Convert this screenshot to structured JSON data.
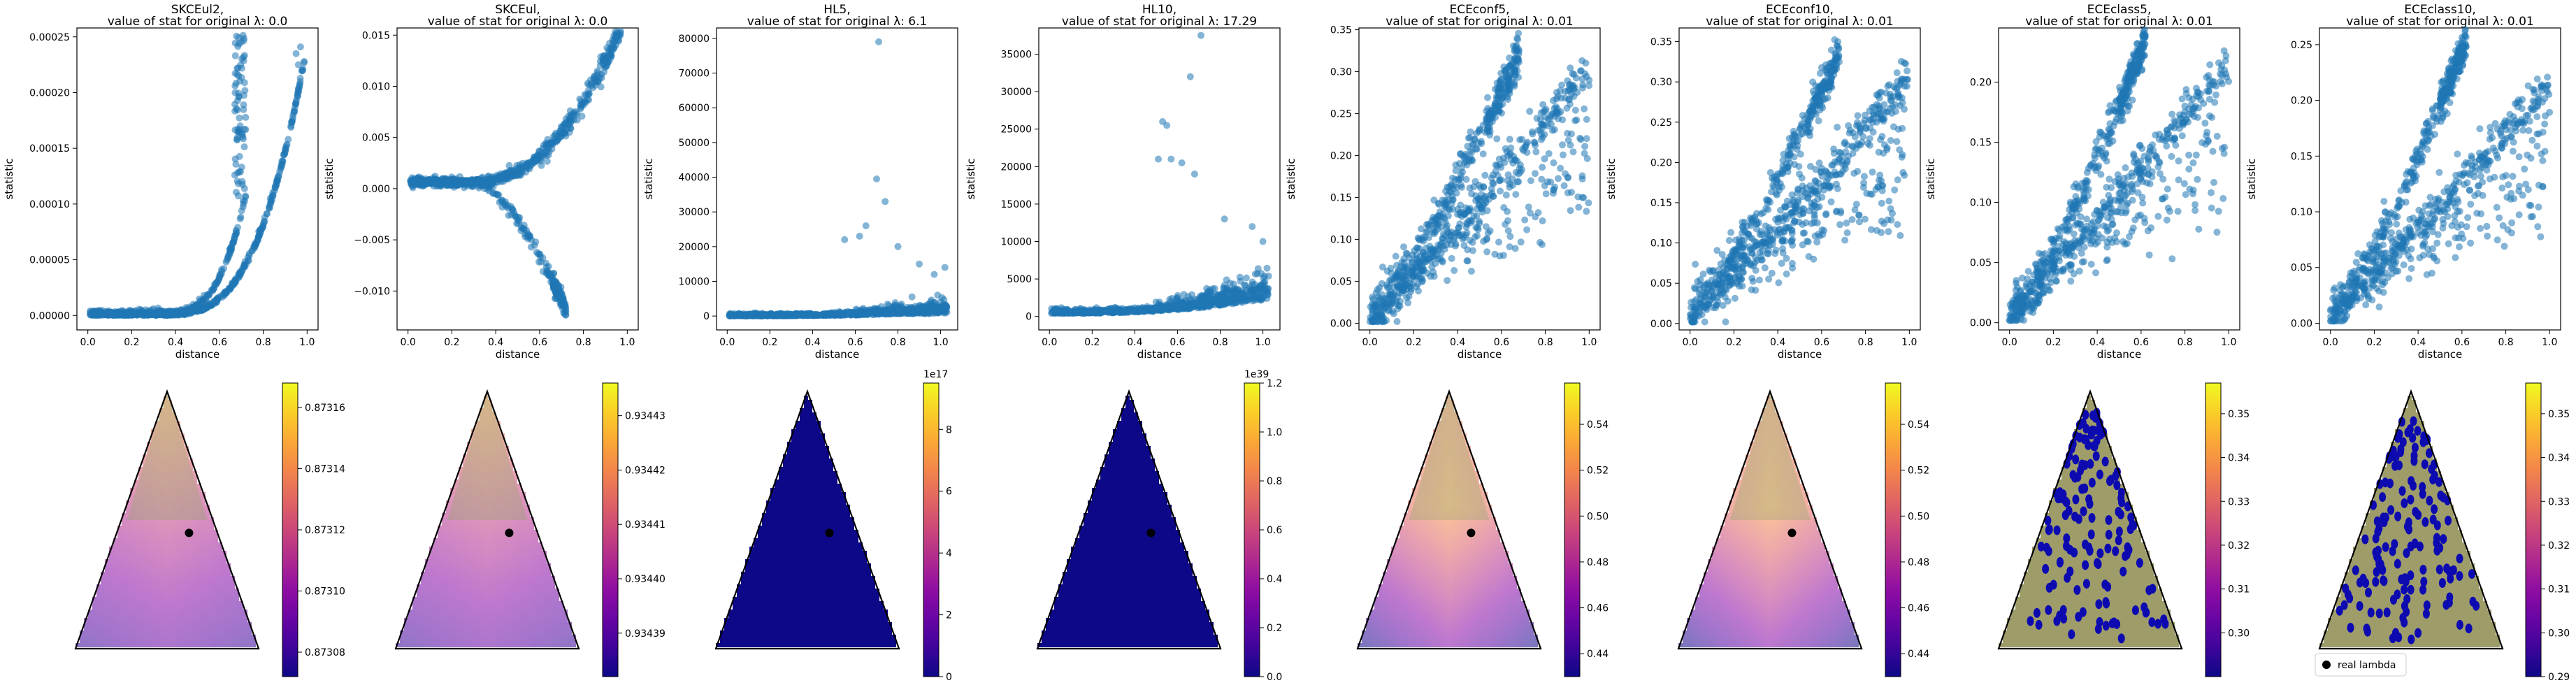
{
  "figure": {
    "background": "#ffffff",
    "point_color": "#1f77b4",
    "real_lambda_legend": "real lambda"
  },
  "chart_data": [
    {
      "type": "scatter",
      "title": "SKCEul2,",
      "subtitle": "value of stat for original λ: 0.0",
      "xlabel": "distance",
      "ylabel": "statistic",
      "xlim": [
        -0.05,
        1.05
      ],
      "ylim": [
        -1.3e-05,
        0.000258
      ],
      "xticks": [
        0.0,
        0.2,
        0.4,
        0.6,
        0.8,
        1.0
      ],
      "xtick_labels": [
        "0.0",
        "0.2",
        "0.4",
        "0.6",
        "0.8",
        "1.0"
      ],
      "yticks": [
        0,
        5e-05,
        0.0001,
        0.00015,
        0.0002,
        0.00025
      ],
      "ytick_labels": [
        "0.00000",
        "0.00005",
        "0.00010",
        "0.00015",
        "0.00020",
        "0.00025"
      ],
      "pattern": "skce2",
      "outliers": [
        [
          0.68,
          0.000158
        ],
        [
          0.67,
          0.000126
        ],
        [
          0.95,
          0.000235
        ],
        [
          0.97,
          0.000241
        ],
        [
          0.96,
          0.000225
        ]
      ]
    },
    {
      "type": "scatter",
      "title": "SKCEul,",
      "subtitle": "value of stat for original λ: 0.0",
      "xlabel": "distance",
      "ylabel": "statistic",
      "xlim": [
        -0.05,
        1.05
      ],
      "ylim": [
        -0.0138,
        0.0157
      ],
      "xticks": [
        0.0,
        0.2,
        0.4,
        0.6,
        0.8,
        1.0
      ],
      "xtick_labels": [
        "0.0",
        "0.2",
        "0.4",
        "0.6",
        "0.8",
        "1.0"
      ],
      "yticks": [
        -0.01,
        -0.005,
        0.0,
        0.005,
        0.01,
        0.015
      ],
      "ytick_labels": [
        "−0.010",
        "−0.005",
        "0.000",
        "0.005",
        "0.010",
        "0.015"
      ],
      "pattern": "skce",
      "outliers": [
        [
          0.71,
          -0.0121
        ],
        [
          0.96,
          0.0144
        ],
        [
          0.94,
          0.0138
        ]
      ]
    },
    {
      "type": "scatter",
      "title": "HL5,",
      "subtitle": "value of stat for original λ: 6.1",
      "xlabel": "distance",
      "ylabel": "statistic",
      "xlim": [
        -0.05,
        1.08
      ],
      "ylim": [
        -4000,
        83000
      ],
      "xticks": [
        0.0,
        0.2,
        0.4,
        0.6,
        0.8,
        1.0
      ],
      "xtick_labels": [
        "0.0",
        "0.2",
        "0.4",
        "0.6",
        "0.8",
        "1.0"
      ],
      "yticks": [
        0,
        10000,
        20000,
        30000,
        40000,
        50000,
        60000,
        70000,
        80000
      ],
      "ytick_labels": [
        "0",
        "10000",
        "20000",
        "30000",
        "40000",
        "50000",
        "60000",
        "70000",
        "80000"
      ],
      "pattern": "hl5",
      "outliers": [
        [
          0.71,
          79000
        ],
        [
          0.7,
          39500
        ],
        [
          0.74,
          33000
        ],
        [
          0.65,
          26000
        ],
        [
          0.62,
          23000
        ],
        [
          0.55,
          22000
        ],
        [
          0.8,
          20000
        ],
        [
          0.9,
          15000
        ],
        [
          1.02,
          14000
        ],
        [
          0.97,
          12000
        ]
      ]
    },
    {
      "type": "scatter",
      "title": "HL10,",
      "subtitle": "value of stat for original λ: 17.29",
      "xlabel": "distance",
      "ylabel": "statistic",
      "xlim": [
        -0.05,
        1.08
      ],
      "ylim": [
        -1800,
        38500
      ],
      "xticks": [
        0.0,
        0.2,
        0.4,
        0.6,
        0.8,
        1.0
      ],
      "xtick_labels": [
        "0.0",
        "0.2",
        "0.4",
        "0.6",
        "0.8",
        "1.0"
      ],
      "yticks": [
        0,
        5000,
        10000,
        15000,
        20000,
        25000,
        30000,
        35000
      ],
      "ytick_labels": [
        "0",
        "5000",
        "10000",
        "15000",
        "20000",
        "25000",
        "30000",
        "35000"
      ],
      "pattern": "hl10",
      "outliers": [
        [
          0.71,
          37500
        ],
        [
          0.66,
          32000
        ],
        [
          0.53,
          26000
        ],
        [
          0.55,
          25500
        ],
        [
          0.62,
          20500
        ],
        [
          0.57,
          21000
        ],
        [
          0.51,
          21000
        ],
        [
          0.68,
          19000
        ],
        [
          0.95,
          12000
        ],
        [
          1.0,
          10000
        ],
        [
          0.82,
          13000
        ]
      ]
    },
    {
      "type": "scatter",
      "title": "ECEconf5,",
      "subtitle": "value of stat for original λ: 0.01",
      "xlabel": "distance",
      "ylabel": "statistic",
      "xlim": [
        -0.05,
        1.05
      ],
      "ylim": [
        -0.008,
        0.352
      ],
      "xticks": [
        0.0,
        0.2,
        0.4,
        0.6,
        0.8,
        1.0
      ],
      "xtick_labels": [
        "0.0",
        "0.2",
        "0.4",
        "0.6",
        "0.8",
        "1.0"
      ],
      "yticks": [
        0.0,
        0.05,
        0.1,
        0.15,
        0.2,
        0.25,
        0.3,
        0.35
      ],
      "ytick_labels": [
        "0.00",
        "0.05",
        "0.10",
        "0.15",
        "0.20",
        "0.25",
        "0.30",
        "0.35"
      ],
      "pattern": "ece_conf",
      "outliers": []
    },
    {
      "type": "scatter",
      "title": "ECEconf10,",
      "subtitle": "value of stat for original λ: 0.01",
      "xlabel": "distance",
      "ylabel": "statistic",
      "xlim": [
        -0.05,
        1.05
      ],
      "ylim": [
        -0.008,
        0.367
      ],
      "xticks": [
        0.0,
        0.2,
        0.4,
        0.6,
        0.8,
        1.0
      ],
      "xtick_labels": [
        "0.0",
        "0.2",
        "0.4",
        "0.6",
        "0.8",
        "1.0"
      ],
      "yticks": [
        0.0,
        0.05,
        0.1,
        0.15,
        0.2,
        0.25,
        0.3,
        0.35
      ],
      "ytick_labels": [
        "0.00",
        "0.05",
        "0.10",
        "0.15",
        "0.20",
        "0.25",
        "0.30",
        "0.35"
      ],
      "pattern": "ece_conf",
      "outliers": []
    },
    {
      "type": "scatter",
      "title": "ECEclass5,",
      "subtitle": "value of stat for original λ: 0.01",
      "xlabel": "distance",
      "ylabel": "statistic",
      "xlim": [
        -0.05,
        1.05
      ],
      "ylim": [
        -0.006,
        0.245
      ],
      "xticks": [
        0.0,
        0.2,
        0.4,
        0.6,
        0.8,
        1.0
      ],
      "xtick_labels": [
        "0.0",
        "0.2",
        "0.4",
        "0.6",
        "0.8",
        "1.0"
      ],
      "yticks": [
        0.0,
        0.05,
        0.1,
        0.15,
        0.2
      ],
      "ytick_labels": [
        "0.00",
        "0.05",
        "0.10",
        "0.15",
        "0.20"
      ],
      "pattern": "ece_class",
      "outliers": []
    },
    {
      "type": "scatter",
      "title": "ECEclass10,",
      "subtitle": "value of stat for original λ: 0.01",
      "xlabel": "distance",
      "ylabel": "statistic",
      "xlim": [
        -0.05,
        1.05
      ],
      "ylim": [
        -0.006,
        0.265
      ],
      "xticks": [
        0.0,
        0.2,
        0.4,
        0.6,
        0.8,
        1.0
      ],
      "xtick_labels": [
        "0.0",
        "0.2",
        "0.4",
        "0.6",
        "0.8",
        "1.0"
      ],
      "yticks": [
        0.0,
        0.05,
        0.1,
        0.15,
        0.2,
        0.25
      ],
      "ytick_labels": [
        "0.00",
        "0.05",
        "0.10",
        "0.15",
        "0.20",
        "0.25"
      ],
      "pattern": "ece_class",
      "outliers": []
    },
    {
      "type": "heatmap",
      "shape": "simplex-triangle",
      "cmap": "plasma",
      "field": "smooth",
      "real_lambda": [
        0.62,
        0.55
      ],
      "colorbar": {
        "range": [
          0.873072,
          0.873168
        ],
        "ticks": [
          0.87308,
          0.8731,
          0.87312,
          0.87314,
          0.87316
        ],
        "tick_labels": [
          "0.87308",
          "0.87310",
          "0.87312",
          "0.87314",
          "0.87316"
        ],
        "offset_label": ""
      }
    },
    {
      "type": "heatmap",
      "shape": "simplex-triangle",
      "cmap": "plasma",
      "field": "smooth",
      "real_lambda": [
        0.62,
        0.55
      ],
      "colorbar": {
        "range": [
          0.934382,
          0.934436
        ],
        "ticks": [
          0.93439,
          0.9344,
          0.93441,
          0.93442,
          0.93443
        ],
        "tick_labels": [
          "0.93439",
          "0.93440",
          "0.93441",
          "0.93442",
          "0.93443"
        ],
        "offset_label": ""
      }
    },
    {
      "type": "heatmap",
      "shape": "simplex-triangle",
      "cmap": "plasma",
      "field": "flat",
      "real_lambda": [
        0.62,
        0.55
      ],
      "colorbar": {
        "range": [
          0,
          9.5
        ],
        "ticks": [
          0,
          2,
          4,
          6,
          8
        ],
        "tick_labels": [
          "0",
          "2",
          "4",
          "6",
          "8"
        ],
        "offset_label": "1e17"
      }
    },
    {
      "type": "heatmap",
      "shape": "simplex-triangle",
      "cmap": "plasma",
      "field": "flat",
      "real_lambda": [
        0.62,
        0.55
      ],
      "colorbar": {
        "range": [
          0,
          1.2
        ],
        "ticks": [
          0.0,
          0.2,
          0.4,
          0.6,
          0.8,
          1.0,
          1.2
        ],
        "tick_labels": [
          "0.0",
          "0.2",
          "0.4",
          "0.6",
          "0.8",
          "1.0",
          "1.2"
        ],
        "offset_label": "1e39"
      }
    },
    {
      "type": "heatmap",
      "shape": "simplex-triangle",
      "cmap": "plasma",
      "field": "vshape",
      "real_lambda": [
        0.62,
        0.55
      ],
      "colorbar": {
        "range": [
          0.43,
          0.558
        ],
        "ticks": [
          0.44,
          0.46,
          0.48,
          0.5,
          0.52,
          0.54
        ],
        "tick_labels": [
          "0.44",
          "0.46",
          "0.48",
          "0.50",
          "0.52",
          "0.54"
        ],
        "offset_label": ""
      }
    },
    {
      "type": "heatmap",
      "shape": "simplex-triangle",
      "cmap": "plasma",
      "field": "vshape",
      "real_lambda": [
        0.62,
        0.55
      ],
      "colorbar": {
        "range": [
          0.43,
          0.558
        ],
        "ticks": [
          0.44,
          0.46,
          0.48,
          0.5,
          0.52,
          0.54
        ],
        "tick_labels": [
          "0.44",
          "0.46",
          "0.48",
          "0.50",
          "0.52",
          "0.54"
        ],
        "offset_label": ""
      }
    },
    {
      "type": "heatmap",
      "shape": "simplex-triangle",
      "cmap": "plasma",
      "field": "spotted",
      "real_lambda": null,
      "colorbar": {
        "range": [
          0.29,
          0.357
        ],
        "ticks": [
          0.3,
          0.31,
          0.32,
          0.33,
          0.34,
          0.35
        ],
        "tick_labels": [
          "0.30",
          "0.31",
          "0.32",
          "0.33",
          "0.34",
          "0.35"
        ],
        "offset_label": ""
      }
    },
    {
      "type": "heatmap",
      "shape": "simplex-triangle",
      "cmap": "plasma",
      "field": "spotted",
      "real_lambda": null,
      "colorbar": {
        "range": [
          0.29,
          0.357
        ],
        "ticks": [
          0.29,
          0.3,
          0.31,
          0.32,
          0.33,
          0.34,
          0.35
        ],
        "tick_labels": [
          "0.29",
          "0.30",
          "0.31",
          "0.32",
          "0.33",
          "0.34",
          "0.35"
        ],
        "offset_label": ""
      },
      "legend": true
    }
  ]
}
